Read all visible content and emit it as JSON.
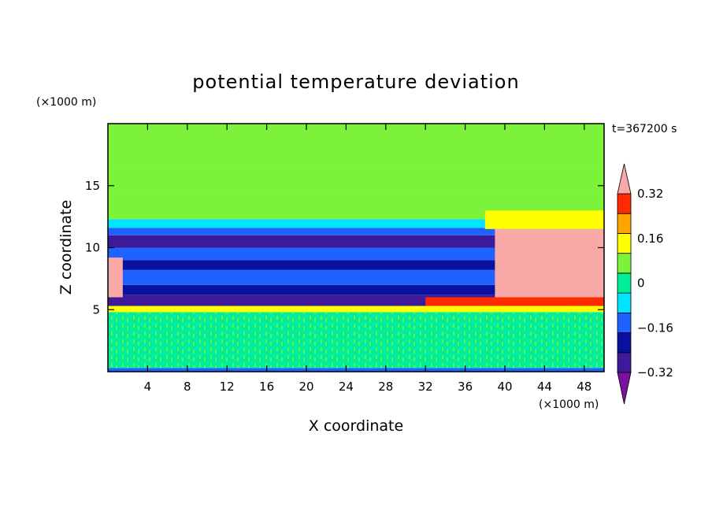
{
  "chart_data": {
    "type": "heatmap",
    "title": "potential temperature deviation",
    "xlabel": "X coordinate",
    "ylabel": "Z coordinate",
    "x_units": "(×1000 m)",
    "y_units": "(×1000 m)",
    "time_label": "t=367200 s",
    "xlim": [
      0,
      50
    ],
    "ylim": [
      0,
      20
    ],
    "xticks": [
      4,
      8,
      12,
      16,
      20,
      24,
      28,
      32,
      36,
      40,
      44,
      48
    ],
    "yticks": [
      5,
      10,
      15
    ],
    "grid": false,
    "colorbar": {
      "levels": [
        -0.4,
        -0.32,
        -0.24,
        -0.16,
        -0.08,
        0,
        0.08,
        0.16,
        0.24,
        0.32,
        0.4
      ],
      "tick_labels": [
        "0.32",
        "0.16",
        "0",
        "−0.16",
        "−0.32"
      ],
      "tick_values": [
        0.32,
        0.16,
        0,
        -0.16,
        -0.32
      ],
      "colors_low_to_high": [
        "#7a0fa0",
        "#3c1a9a",
        "#0a10a0",
        "#1f62ff",
        "#00e4ff",
        "#00ee9a",
        "#7cf23a",
        "#ffff00",
        "#ffa500",
        "#ff2a00",
        "#f8a9a7"
      ],
      "extend": "both"
    },
    "bands": [
      {
        "z": [
          0.0,
          0.3
        ],
        "value": -0.2
      },
      {
        "z": [
          0.3,
          4.8
        ],
        "value": 0.0
      },
      {
        "z": [
          4.8,
          5.3
        ],
        "value": 0.1
      },
      {
        "z": [
          5.3,
          6.2
        ],
        "value": -0.32
      },
      {
        "z": [
          6.2,
          7.0
        ],
        "value": -0.24
      },
      {
        "z": [
          7.0,
          8.2
        ],
        "value": -0.16
      },
      {
        "z": [
          8.2,
          9.0
        ],
        "value": -0.24
      },
      {
        "z": [
          9.0,
          10.0
        ],
        "value": -0.16
      },
      {
        "z": [
          10.0,
          11.0
        ],
        "value": -0.32
      },
      {
        "z": [
          11.0,
          11.6
        ],
        "value": -0.16
      },
      {
        "z": [
          11.6,
          12.3
        ],
        "value": -0.1
      },
      {
        "z": [
          12.3,
          14.5
        ],
        "value": 0.04
      },
      {
        "z": [
          14.5,
          16.5
        ],
        "value": 0.02
      },
      {
        "z": [
          16.5,
          20.0
        ],
        "value": 0.03
      }
    ],
    "patches": [
      {
        "x": [
          39,
          50
        ],
        "z": [
          6.0,
          11.5
        ],
        "value": 0.4
      },
      {
        "x": [
          32,
          50
        ],
        "z": [
          5.3,
          6.0
        ],
        "value": 0.32
      },
      {
        "x": [
          0,
          1.5
        ],
        "z": [
          6.0,
          9.2
        ],
        "value": 0.4
      },
      {
        "x": [
          38,
          50
        ],
        "z": [
          11.5,
          13.0
        ],
        "value": 0.16
      }
    ]
  },
  "colors": {
    "frame": "#000000",
    "background": "#ffffff"
  }
}
